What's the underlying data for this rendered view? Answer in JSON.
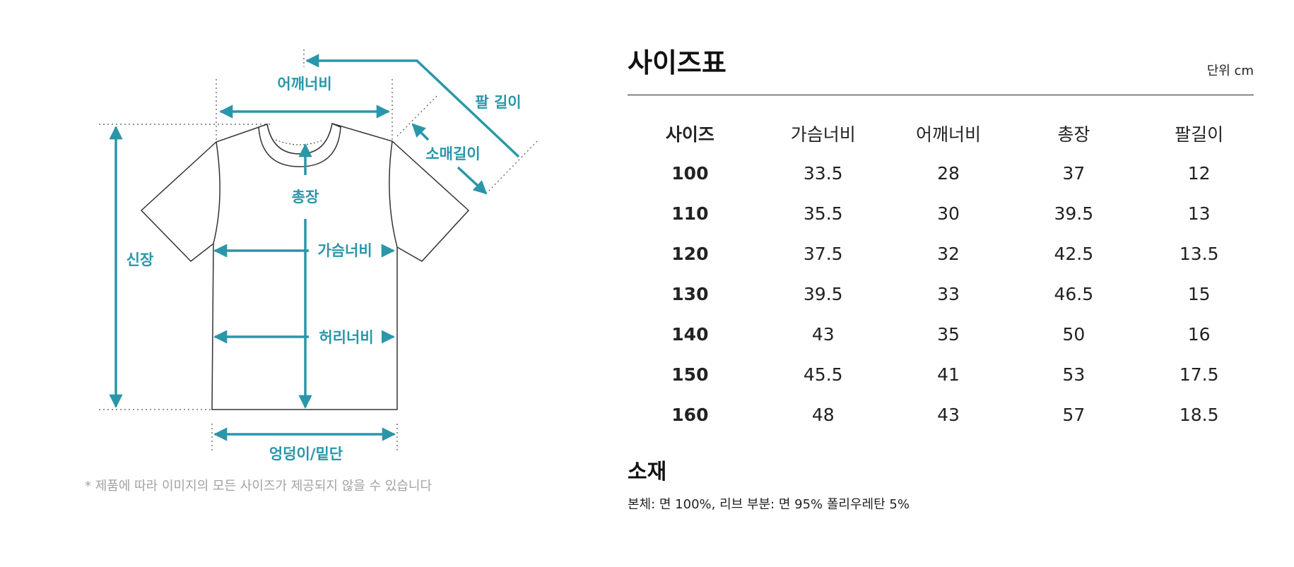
{
  "diagram": {
    "labels": {
      "arm_length": "팔 길이",
      "shoulder_width": "어깨너비",
      "sleeve_length": "소매길이",
      "total_length": "총장",
      "chest_width": "가슴너비",
      "height": "신장",
      "waist_width": "허리너비",
      "hem": "엉덩이/밑단"
    },
    "note": "* 제품에 따라 이미지의 모든 사이즈가 제공되지 않을 수 있습니다",
    "accent_color": "#2a96a9"
  },
  "size_chart": {
    "title": "사이즈표",
    "unit": "단위 cm",
    "headers": [
      "사이즈",
      "가슴너비",
      "어깨너비",
      "총장",
      "팔길이"
    ],
    "rows": [
      [
        "100",
        "33.5",
        "28",
        "37",
        "12"
      ],
      [
        "110",
        "35.5",
        "30",
        "39.5",
        "13"
      ],
      [
        "120",
        "37.5",
        "32",
        "42.5",
        "13.5"
      ],
      [
        "130",
        "39.5",
        "33",
        "46.5",
        "15"
      ],
      [
        "140",
        "43",
        "35",
        "50",
        "16"
      ],
      [
        "150",
        "45.5",
        "41",
        "53",
        "17.5"
      ],
      [
        "160",
        "48",
        "43",
        "57",
        "18.5"
      ]
    ]
  },
  "material": {
    "title": "소재",
    "text": "본체: 면 100%, 리브 부분: 면 95% 폴리우레탄 5%"
  }
}
